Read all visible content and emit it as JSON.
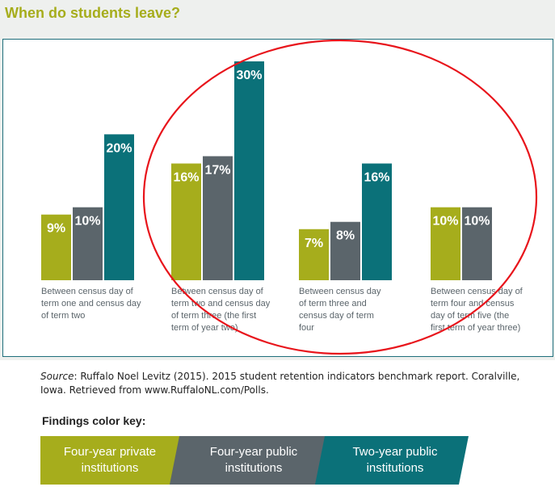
{
  "title": "When do students leave?",
  "chart_data": {
    "type": "bar",
    "categories": [
      "Between census day of term one and census day of term two",
      "Between census day of term two and census day of term three (the first term of year two)",
      "Between census day of term three and census day of term four",
      "Between census day of term four and census day of term five (the first term of year three)"
    ],
    "category_lines": [
      [
        "Between census day of",
        "term one and census day",
        "of term two"
      ],
      [
        "Between census day of",
        "term two and census day",
        "of term three (the first",
        "term of year two)"
      ],
      [
        "Between census day",
        "of term three and",
        "census day of term",
        "four"
      ],
      [
        "Between census day of",
        "term four and census",
        "day of term five (the",
        "first term of year three)"
      ]
    ],
    "series": [
      {
        "name": "Four-year private institutions",
        "color": "#a6ad1c",
        "values": [
          9,
          16,
          7,
          10
        ],
        "labels": [
          "9%",
          "16%",
          "7%",
          "10%"
        ]
      },
      {
        "name": "Four-year public institutions",
        "color": "#5b656b",
        "values": [
          10,
          17,
          8,
          10
        ],
        "labels": [
          "10%",
          "17%",
          "8%",
          "10%"
        ]
      },
      {
        "name": "Two-year public institutions",
        "color": "#0b7179",
        "values": [
          20,
          30,
          16,
          null
        ],
        "labels": [
          "20%",
          "30%",
          "16%",
          ""
        ]
      }
    ],
    "ylim": [
      0,
      30
    ],
    "grid": false,
    "legend_position": "bottom",
    "annotation": "red ellipse around middle groups"
  },
  "source": {
    "label": "Source",
    "text": ": Ruffalo Noel Levitz (2015). 2015 student retention indicators benchmark report. Coralville, Iowa. Retrieved from www.RuffaloNL.com/Polls."
  },
  "key": {
    "title": "Findings color key:",
    "items": [
      {
        "lines": [
          "Four-year private",
          "institutions"
        ],
        "color": "#a6ad1c"
      },
      {
        "lines": [
          "Four-year public",
          "institutions"
        ],
        "color": "#5b656b"
      },
      {
        "lines": [
          "Two-year public",
          "institutions"
        ],
        "color": "#0b7179"
      }
    ]
  }
}
